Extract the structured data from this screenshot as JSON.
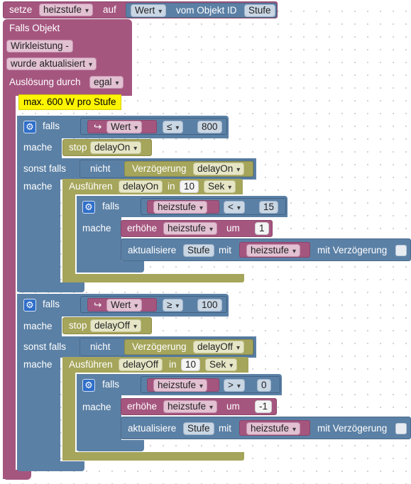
{
  "top_block": {
    "setze": "setze",
    "var": "heizstufe",
    "auf": "auf",
    "prop": "Wert",
    "vom": "vom Objekt ID",
    "objid": "Stufe"
  },
  "trigger": {
    "falls_objekt": "Falls Objekt",
    "object": "Wirkleistung -",
    "when": "wurde aktualisiert",
    "ausloesung": "Auslösung durch",
    "ausloesung_value": "egal"
  },
  "comment": "max. 600 W pro Stufe",
  "labels": {
    "falls": "falls",
    "mache": "mache",
    "sonst_falls": "sonst falls",
    "nicht": "nicht",
    "verzoegerung": "Verzögerung",
    "ausfuehren": "Ausführen",
    "in": "in",
    "sek": "Sek",
    "stop": "stop",
    "erhoehe": "erhöhe",
    "um": "um",
    "aktualisiere": "aktualisiere",
    "mit": "mit",
    "mit_verzoegerung": "mit Verzögerung",
    "wert": "Wert"
  },
  "branches": [
    {
      "op": "≤",
      "threshold": "800",
      "timer": "delayOn",
      "delay": "10",
      "inner_op": "<",
      "inner_value": "15",
      "step": "1",
      "var": "heizstufe",
      "state": "Stufe"
    },
    {
      "op": "≥",
      "threshold": "100",
      "timer": "delayOff",
      "delay": "10",
      "inner_op": ">",
      "inner_value": "0",
      "step": "-1",
      "var": "heizstufe",
      "state": "Stufe"
    }
  ]
}
